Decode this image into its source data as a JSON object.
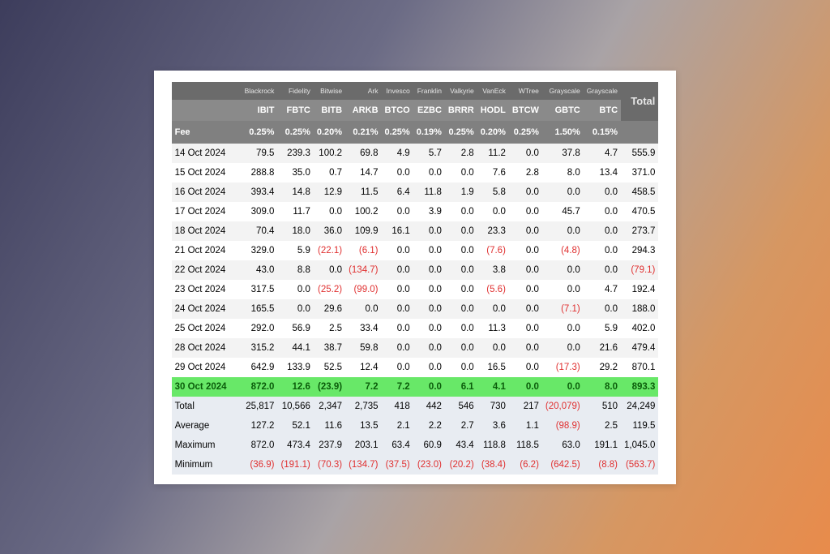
{
  "header": {
    "companies": [
      "",
      "Blackrock",
      "Fidelity",
      "Bitwise",
      "Ark",
      "Invesco",
      "Franklin",
      "Valkyrie",
      "VanEck",
      "WTree",
      "Grayscale",
      "Grayscale",
      "Total"
    ],
    "tickers": [
      "",
      "IBIT",
      "FBTC",
      "BITB",
      "ARKB",
      "BTCO",
      "EZBC",
      "BRRR",
      "HODL",
      "BTCW",
      "GBTC",
      "BTC",
      ""
    ],
    "fee_label": "Fee",
    "fees": [
      "0.25%",
      "0.25%",
      "0.20%",
      "0.21%",
      "0.25%",
      "0.19%",
      "0.25%",
      "0.20%",
      "0.25%",
      "1.50%",
      "0.15%",
      ""
    ]
  },
  "rows": [
    {
      "date": "14 Oct 2024",
      "v": [
        "79.5",
        "239.3",
        "100.2",
        "69.8",
        "4.9",
        "5.7",
        "2.8",
        "11.2",
        "0.0",
        "37.8",
        "4.7",
        "555.9"
      ]
    },
    {
      "date": "15 Oct 2024",
      "v": [
        "288.8",
        "35.0",
        "0.7",
        "14.7",
        "0.0",
        "0.0",
        "0.0",
        "7.6",
        "2.8",
        "8.0",
        "13.4",
        "371.0"
      ]
    },
    {
      "date": "16 Oct 2024",
      "v": [
        "393.4",
        "14.8",
        "12.9",
        "11.5",
        "6.4",
        "11.8",
        "1.9",
        "5.8",
        "0.0",
        "0.0",
        "0.0",
        "458.5"
      ]
    },
    {
      "date": "17 Oct 2024",
      "v": [
        "309.0",
        "11.7",
        "0.0",
        "100.2",
        "0.0",
        "3.9",
        "0.0",
        "0.0",
        "0.0",
        "45.7",
        "0.0",
        "470.5"
      ]
    },
    {
      "date": "18 Oct 2024",
      "v": [
        "70.4",
        "18.0",
        "36.0",
        "109.9",
        "16.1",
        "0.0",
        "0.0",
        "23.3",
        "0.0",
        "0.0",
        "0.0",
        "273.7"
      ]
    },
    {
      "date": "21 Oct 2024",
      "v": [
        "329.0",
        "5.9",
        "(22.1)",
        "(6.1)",
        "0.0",
        "0.0",
        "0.0",
        "(7.6)",
        "0.0",
        "(4.8)",
        "0.0",
        "294.3"
      ]
    },
    {
      "date": "22 Oct 2024",
      "v": [
        "43.0",
        "8.8",
        "0.0",
        "(134.7)",
        "0.0",
        "0.0",
        "0.0",
        "3.8",
        "0.0",
        "0.0",
        "0.0",
        "(79.1)"
      ]
    },
    {
      "date": "23 Oct 2024",
      "v": [
        "317.5",
        "0.0",
        "(25.2)",
        "(99.0)",
        "0.0",
        "0.0",
        "0.0",
        "(5.6)",
        "0.0",
        "0.0",
        "4.7",
        "192.4"
      ]
    },
    {
      "date": "24 Oct 2024",
      "v": [
        "165.5",
        "0.0",
        "29.6",
        "0.0",
        "0.0",
        "0.0",
        "0.0",
        "0.0",
        "0.0",
        "(7.1)",
        "0.0",
        "188.0"
      ]
    },
    {
      "date": "25 Oct 2024",
      "v": [
        "292.0",
        "56.9",
        "2.5",
        "33.4",
        "0.0",
        "0.0",
        "0.0",
        "11.3",
        "0.0",
        "0.0",
        "5.9",
        "402.0"
      ]
    },
    {
      "date": "28 Oct 2024",
      "v": [
        "315.2",
        "44.1",
        "38.7",
        "59.8",
        "0.0",
        "0.0",
        "0.0",
        "0.0",
        "0.0",
        "0.0",
        "21.6",
        "479.4"
      ]
    },
    {
      "date": "29 Oct 2024",
      "v": [
        "642.9",
        "133.9",
        "52.5",
        "12.4",
        "0.0",
        "0.0",
        "0.0",
        "16.5",
        "0.0",
        "(17.3)",
        "29.2",
        "870.1"
      ]
    },
    {
      "date": "30 Oct 2024",
      "highlight": true,
      "v": [
        "872.0",
        "12.6",
        "(23.9)",
        "7.2",
        "7.2",
        "0.0",
        "6.1",
        "4.1",
        "0.0",
        "0.0",
        "8.0",
        "893.3"
      ]
    }
  ],
  "summary": [
    {
      "label": "Total",
      "v": [
        "25,817",
        "10,566",
        "2,347",
        "2,735",
        "418",
        "442",
        "546",
        "730",
        "217",
        "(20,079)",
        "510",
        "24,249"
      ]
    },
    {
      "label": "Average",
      "v": [
        "127.2",
        "52.1",
        "11.6",
        "13.5",
        "2.1",
        "2.2",
        "2.7",
        "3.6",
        "1.1",
        "(98.9)",
        "2.5",
        "119.5"
      ]
    },
    {
      "label": "Maximum",
      "v": [
        "872.0",
        "473.4",
        "237.9",
        "203.1",
        "63.4",
        "60.9",
        "43.4",
        "118.8",
        "118.5",
        "63.0",
        "191.1",
        "1,045.0"
      ]
    },
    {
      "label": "Minimum",
      "v": [
        "(36.9)",
        "(191.1)",
        "(70.3)",
        "(134.7)",
        "(37.5)",
        "(23.0)",
        "(20.2)",
        "(38.4)",
        "(6.2)",
        "(642.5)",
        "(8.8)",
        "(563.7)"
      ]
    }
  ],
  "colors": {
    "neg": "#e03030",
    "highlight_bg": "#68e868",
    "summary_bg": "#e8ecf2"
  }
}
